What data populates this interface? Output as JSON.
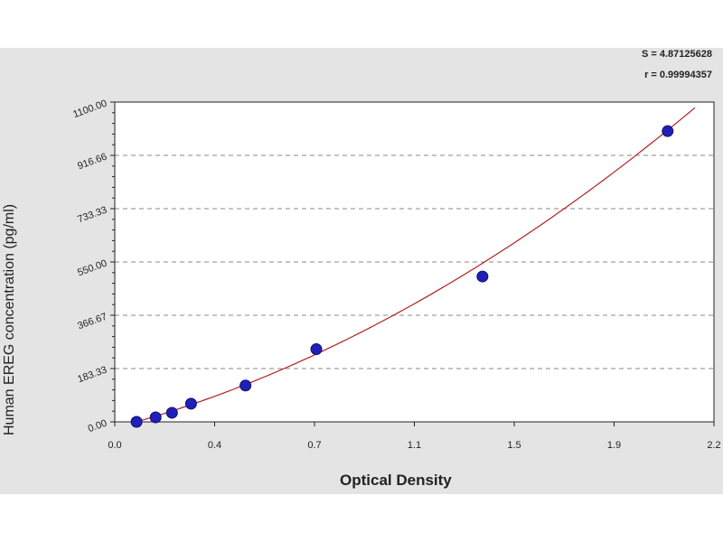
{
  "stats": {
    "s_text": "S = 4.87125628",
    "r_text": "r = 0.99994357"
  },
  "chart_data": {
    "type": "scatter",
    "title": "",
    "xlabel": "Optical Density",
    "ylabel": "Human EREG concentration (pg/ml)",
    "xlim": [
      0.0,
      2.2
    ],
    "ylim": [
      0.0,
      1100.0
    ],
    "x_ticks": [
      "0.0",
      "0.4",
      "0.7",
      "1.1",
      "1.5",
      "1.9",
      "2.2"
    ],
    "y_ticks": [
      "0.00",
      "183.33",
      "366.67",
      "550.00",
      "733.33",
      "916.66",
      "1100.00"
    ],
    "grid": "horizontal-dashed",
    "points": {
      "x": [
        0.08,
        0.15,
        0.21,
        0.28,
        0.48,
        0.74,
        1.35,
        2.03
      ],
      "y": [
        0,
        15.6,
        31.2,
        62.5,
        125,
        250,
        500,
        1000
      ],
      "marker_color": "#2020b8"
    },
    "fit_curve": {
      "color": "#b02020",
      "form": "quadratic",
      "coefficients": [
        -20.77,
        250.6,
        125.1
      ],
      "x_range": [
        0.06,
        2.13
      ]
    }
  }
}
